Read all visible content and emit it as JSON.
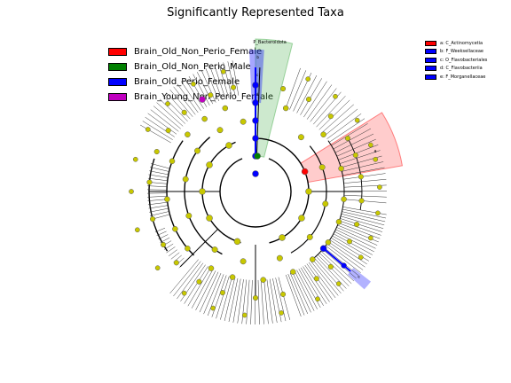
{
  "chart_data": {
    "type": "cladogram",
    "title": "Significantly Represented Taxa",
    "classes": [
      {
        "name": "Brain_Old_Non_Perio_Female",
        "color": "#ff0000"
      },
      {
        "name": "Brain_Old_Non_Perio_Male",
        "color": "#008000"
      },
      {
        "name": "Brain_Old_Perio_Female",
        "color": "#0000ff"
      },
      {
        "name": "Brain_Young_Non_Perio_Female",
        "color": "#c000c0"
      }
    ],
    "taxa_key": [
      {
        "label": "a: C_Actinomycetia",
        "color": "#ff0000"
      },
      {
        "label": "b: F_Weeksellaceae",
        "color": "#0000ff"
      },
      {
        "label": "c: O_Flavobacteriales",
        "color": "#0000ff"
      },
      {
        "label": "d: C_Flavobacteriia",
        "color": "#0000ff"
      },
      {
        "label": "e: F_Morganellaceae",
        "color": "#0000ff"
      }
    ],
    "clade_annotations": [
      {
        "label": "P_Bacteroidota",
        "color": "#4caf50"
      },
      {
        "label": "a",
        "color": "#ff0000"
      },
      {
        "label": "b",
        "color": "#0000ff"
      },
      {
        "label": "c",
        "color": "#0000ff"
      },
      {
        "label": "d",
        "color": "#0000ff"
      },
      {
        "label": "e",
        "color": "#0000ff"
      }
    ],
    "nonsignificant_color": "#c8c800"
  }
}
